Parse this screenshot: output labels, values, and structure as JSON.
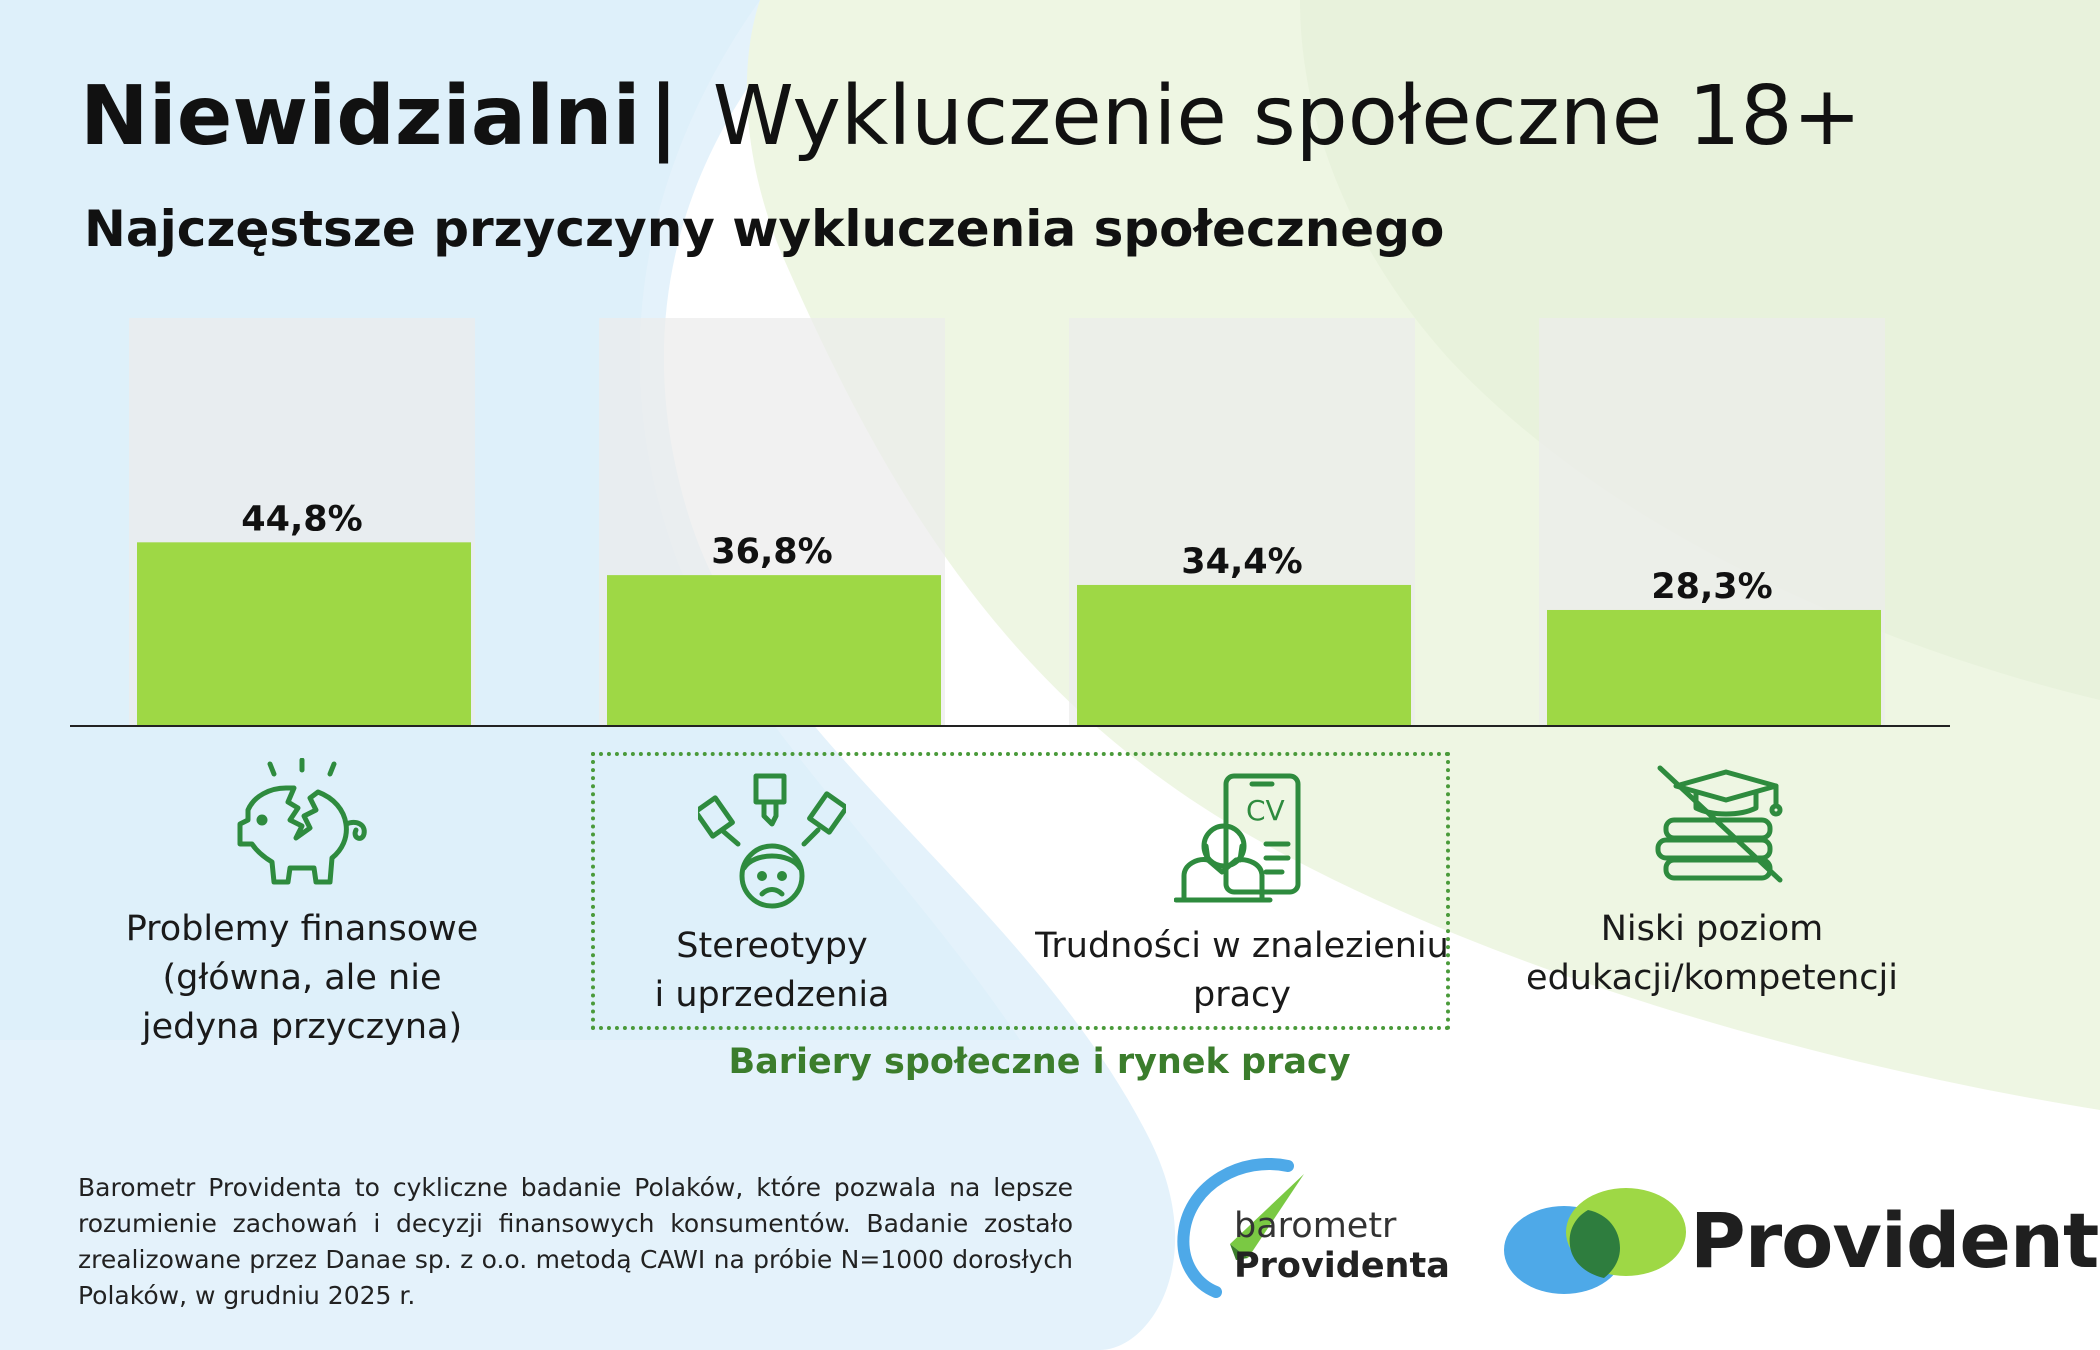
{
  "header": {
    "title_bold": "Niewidzialni",
    "title_sep": "|",
    "title_light": "Wykluczenie społeczne 18+",
    "subtitle": "Najczęstsze przyczyny wykluczenia społecznego"
  },
  "chart_data": {
    "type": "bar",
    "title": "Najczęstsze przyczyny wykluczenia społecznego",
    "unit": "%",
    "ylim": [
      0,
      100
    ],
    "categories": [
      "Problemy finansowe (główna, ale nie jedyna przyczyna)",
      "Stereotypy i uprzedzenia",
      "Trudności w znalezieniu pracy",
      "Niski poziom edukacji/kompetencji"
    ],
    "values": [
      44.8,
      36.8,
      34.4,
      28.3
    ],
    "value_labels": [
      "44,8%",
      "36,8%",
      "34,4%",
      "28,3%"
    ],
    "colors": {
      "bar": "#9ed845",
      "track": "#ececec",
      "axis": "#222222"
    }
  },
  "categories_display": [
    "Problemy finansowe\n(główna, ale nie\njedyna przyczyna)",
    "Stereotypy\ni uprzedzenia",
    "Trudności w znalezieniu\npracy",
    "Niski poziom\nedukacji/kompetencji"
  ],
  "icons": [
    "broken-piggy-bank-icon",
    "stereotypes-pointing-icon",
    "job-search-cv-icon",
    "no-education-books-icon"
  ],
  "group": {
    "label": "Bariery społeczne i rynek pracy"
  },
  "footnote": "Barometr Providenta to cykliczne badanie Polaków, które pozwala na lepsze rozumienie zachowań i decyzji finansowych konsumentów. Badanie zostało zrealizowane przez Danae sp. z o.o. metodą CAWI na próbie N=1000 dorosłych Polaków, w grudniu 2025 r.",
  "logos": {
    "barometr_line1": "barometr",
    "barometr_line2": "Providenta",
    "provident": "Provident"
  },
  "colors": {
    "accent_green": "#9ed845",
    "dark_green": "#3b7d2c",
    "icon_green": "#2e8b3e",
    "blue": "#4ea9e8"
  }
}
